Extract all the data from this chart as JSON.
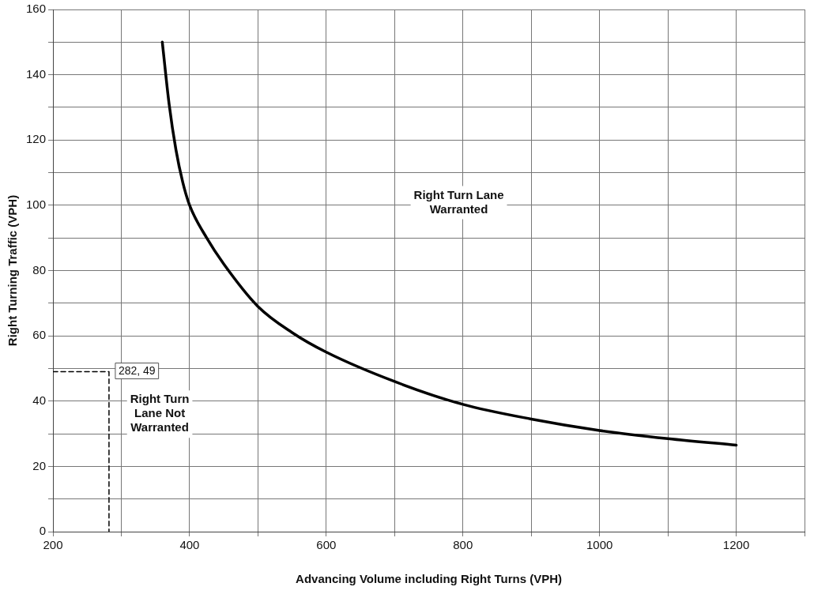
{
  "chart_data": {
    "type": "line",
    "xlabel": "Advancing Volume including Right Turns (VPH)",
    "ylabel": "Right Turning Traffic (VPH)",
    "xlim": [
      200,
      1300
    ],
    "xticks": [
      200,
      {
        "value": 300,
        "label": null
      },
      400,
      {
        "value": 500,
        "label": null
      },
      600,
      {
        "value": 700,
        "label": null
      },
      800,
      {
        "value": 900,
        "label": null
      },
      1000,
      {
        "value": 1100,
        "label": null
      },
      1200,
      {
        "value": 1300,
        "label": null
      }
    ],
    "ylim": [
      0,
      160
    ],
    "yticks": [
      0,
      {
        "value": 10,
        "label": null
      },
      20,
      {
        "value": 30,
        "label": null
      },
      40,
      {
        "value": 50,
        "label": null
      },
      60,
      {
        "value": 70,
        "label": null
      },
      80,
      {
        "value": 90,
        "label": null
      },
      100,
      {
        "value": 110,
        "label": null
      },
      120,
      {
        "value": 130,
        "label": null
      },
      140,
      {
        "value": 150,
        "label": null
      },
      160
    ],
    "grid": true,
    "legend": false,
    "marker": "none",
    "series": [
      {
        "color": "#000000",
        "x": [
          360,
          370,
          380,
          390,
          400,
          425,
          450,
          500,
          550,
          600,
          700,
          800,
          900,
          1000,
          1100,
          1200
        ],
        "values": [
          150,
          131,
          117,
          107,
          100,
          90,
          82,
          69,
          61,
          55,
          46,
          39,
          34.5,
          31,
          28.5,
          26.5
        ]
      },
      {
        "type": "line",
        "color": "#000000",
        "line_style": "dashed",
        "x": [
          200,
          282,
          282
        ],
        "values": [
          49,
          49,
          0
        ]
      }
    ],
    "annotations": [
      {
        "text": "282, 49",
        "x": 282,
        "y": 49
      },
      "Right Turn Lane Warranted",
      "Right Turn Lane Not Warranted"
    ]
  }
}
